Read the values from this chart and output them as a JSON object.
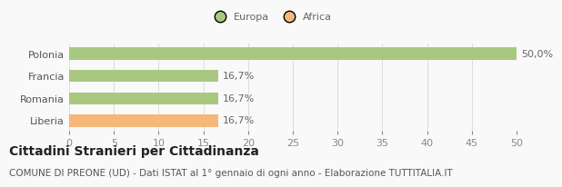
{
  "categories": [
    "Polonia",
    "Francia",
    "Romania",
    "Liberia"
  ],
  "values": [
    50.0,
    16.7,
    16.7,
    16.7
  ],
  "bar_colors": [
    "#a8c880",
    "#a8c880",
    "#a8c880",
    "#f5b87a"
  ],
  "bar_labels": [
    "50,0%",
    "16,7%",
    "16,7%",
    "16,7%"
  ],
  "xlim": [
    0,
    50
  ],
  "xticks": [
    0,
    5,
    10,
    15,
    20,
    25,
    30,
    35,
    40,
    45,
    50
  ],
  "legend_items": [
    {
      "label": "Europa",
      "color": "#a8c880"
    },
    {
      "label": "Africa",
      "color": "#f5b87a"
    }
  ],
  "title": "Cittadini Stranieri per Cittadinanza",
  "subtitle": "COMUNE DI PREONE (UD) - Dati ISTAT al 1° gennaio di ogni anno - Elaborazione TUTTITALIA.IT",
  "background_color": "#f9f9f9",
  "grid_color": "#dddddd",
  "bar_height": 0.55,
  "label_fontsize": 8,
  "title_fontsize": 10,
  "subtitle_fontsize": 7.5,
  "tick_fontsize": 8
}
